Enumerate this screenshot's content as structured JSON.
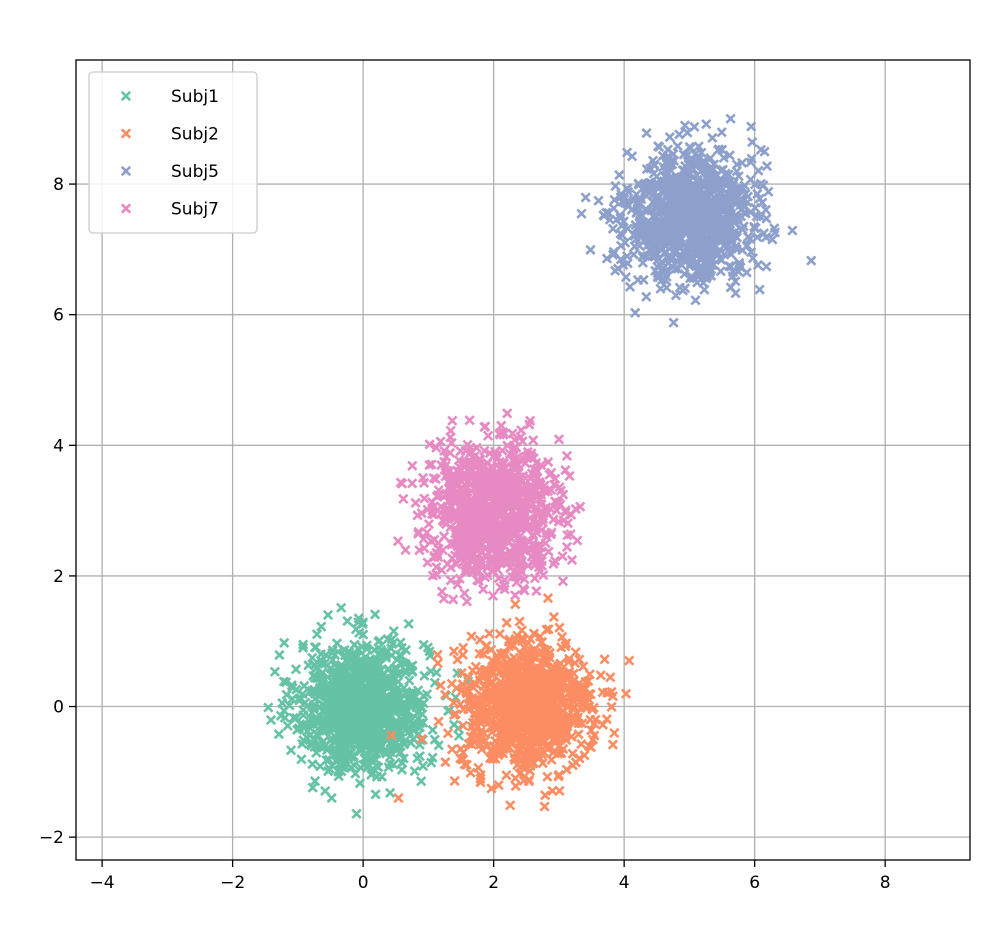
{
  "chart_data": {
    "type": "scatter",
    "title": "",
    "xlabel": "",
    "ylabel": "",
    "xlim": [
      -4.4,
      9.3
    ],
    "ylim": [
      -2.35,
      9.9
    ],
    "xticks": [
      -4,
      -2,
      0,
      2,
      4,
      6,
      8
    ],
    "yticks": [
      -2,
      0,
      2,
      4,
      6,
      8
    ],
    "xtick_labels": [
      "−4",
      "−2",
      "0",
      "2",
      "4",
      "6",
      "8"
    ],
    "ytick_labels": [
      "−2",
      "0",
      "2",
      "4",
      "6",
      "8"
    ],
    "grid": true,
    "marker": "x",
    "legend_position": "top-left",
    "series": [
      {
        "name": "Subj1",
        "color": "#66c2a5",
        "center": [
          0.0,
          0.0
        ],
        "std": 0.5,
        "count": 1000
      },
      {
        "name": "Subj2",
        "color": "#fc8d62",
        "center": [
          2.5,
          0.0
        ],
        "std": 0.5,
        "count": 1000
      },
      {
        "name": "Subj5",
        "color": "#8da0cb",
        "center": [
          5.0,
          7.5
        ],
        "std": 0.5,
        "count": 1000
      },
      {
        "name": "Subj7",
        "color": "#e78ac3",
        "center": [
          2.0,
          3.0
        ],
        "std": 0.5,
        "count": 1000
      }
    ]
  }
}
